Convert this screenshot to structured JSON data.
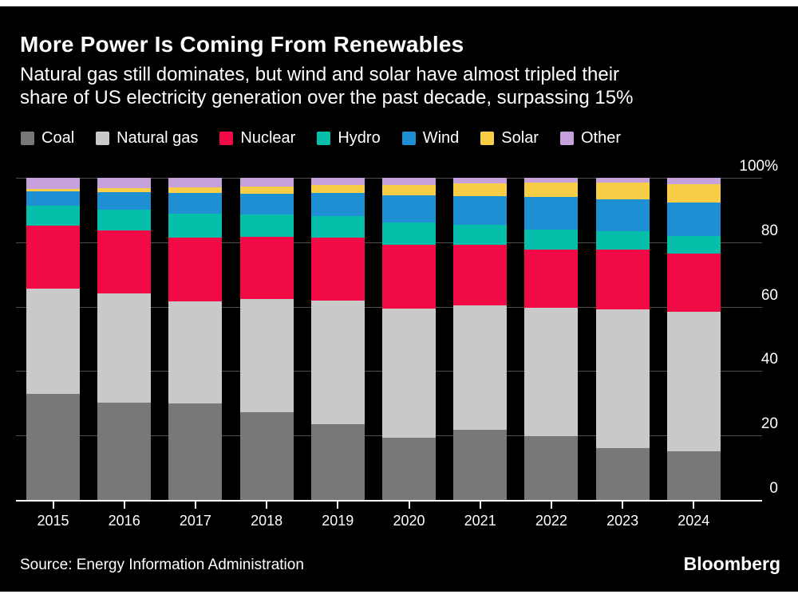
{
  "page": {
    "background": "#ffffff",
    "card_background": "#000000",
    "grid_color": "#4f4f4f",
    "axis_color": "#ffffff",
    "text_color": "#ffffff"
  },
  "header": {
    "title": "More Power Is Coming From Renewables",
    "subtitle_line1": "Natural gas still dominates, but wind and solar have almost tripled their",
    "subtitle_line2": "share of US electricity generation over the past decade, surpassing 15%"
  },
  "chart_data": {
    "type": "bar",
    "variant": "stacked-100-percent",
    "title": "More Power Is Coming From Renewables",
    "xlabel": "",
    "ylabel": "",
    "ylim": [
      0,
      100
    ],
    "grid": true,
    "y_ticks": [
      "100%",
      "80",
      "60",
      "40",
      "20",
      "0"
    ],
    "legend_position": "top",
    "categories": [
      "2015",
      "2016",
      "2017",
      "2018",
      "2019",
      "2020",
      "2021",
      "2022",
      "2023",
      "2024"
    ],
    "series": [
      {
        "name": "Coal",
        "color": "#787878",
        "values": [
          32.9,
          30.3,
          29.9,
          27.2,
          23.4,
          19.2,
          21.9,
          19.7,
          16.2,
          15.0
        ]
      },
      {
        "name": "Natural gas",
        "color": "#c9c9c9",
        "values": [
          32.7,
          33.7,
          31.7,
          35.2,
          38.4,
          40.3,
          38.4,
          39.9,
          43.0,
          43.3
        ]
      },
      {
        "name": "Nuclear",
        "color": "#f20a46",
        "values": [
          19.6,
          19.6,
          19.9,
          19.2,
          19.6,
          19.6,
          18.9,
          18.2,
          18.5,
          18.1
        ]
      },
      {
        "name": "Hydro",
        "color": "#06bfab",
        "values": [
          6.1,
          6.5,
          7.4,
          6.9,
          6.6,
          7.1,
          6.1,
          6.1,
          5.6,
          5.5
        ]
      },
      {
        "name": "Wind",
        "color": "#1f8fd4",
        "values": [
          4.4,
          5.5,
          6.3,
          6.5,
          7.2,
          8.3,
          9.1,
          10.1,
          10.1,
          10.5
        ]
      },
      {
        "name": "Solar",
        "color": "#f8ce47",
        "values": [
          0.9,
          1.3,
          1.9,
          2.2,
          2.6,
          3.3,
          3.9,
          4.6,
          5.0,
          5.6
        ]
      },
      {
        "name": "Other",
        "color": "#c7a1db",
        "values": [
          3.4,
          3.1,
          2.9,
          2.8,
          2.2,
          2.2,
          1.7,
          1.4,
          1.6,
          2.0
        ]
      }
    ]
  },
  "footer": {
    "source": "Source: Energy Information Administration",
    "brand": "Bloomberg"
  }
}
